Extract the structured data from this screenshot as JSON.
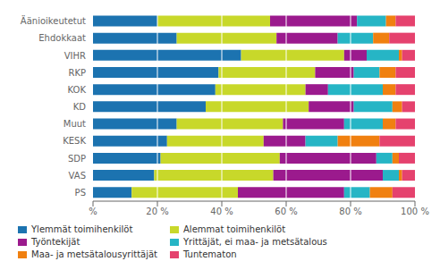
{
  "chart_data": {
    "type": "bar",
    "orientation": "horizontal",
    "stacked": true,
    "grid": true,
    "legend": "lower left",
    "categories": [
      "Äänioikeutetut",
      "Ehdokkaat",
      "VIHR",
      "RKP",
      "KOK",
      "KD",
      "Muut",
      "KESK",
      "SDP",
      "VAS",
      "PS"
    ],
    "series": [
      {
        "name": "Ylemmät toimihenkilöt",
        "color": "#1c73b0",
        "values": [
          20,
          26,
          46,
          39,
          38,
          35,
          26,
          23,
          21,
          19,
          12
        ]
      },
      {
        "name": "Alemmat toimihenkilöt",
        "color": "#c8d82a",
        "values": [
          35,
          31,
          32,
          30,
          28,
          32,
          33,
          30,
          37,
          37,
          33
        ]
      },
      {
        "name": "Työntekijät",
        "color": "#9b1a8d",
        "values": [
          27,
          19,
          7,
          12,
          7,
          14,
          19,
          13,
          30,
          34,
          33
        ]
      },
      {
        "name": "Yrittäjät, ei maa- ja metsätalous",
        "color": "#26b5c5",
        "values": [
          9,
          11,
          10,
          8,
          17,
          12,
          12,
          10,
          5,
          5,
          8
        ]
      },
      {
        "name": "Maa- ja metsätalousyrittäjät",
        "color": "#f08010",
        "values": [
          3,
          5,
          1,
          5,
          4,
          3,
          4,
          13,
          2,
          1,
          7
        ]
      },
      {
        "name": "Tuntematon",
        "color": "#e5426e",
        "values": [
          6,
          8,
          4,
          6,
          6,
          4,
          6,
          11,
          5,
          4,
          7
        ]
      }
    ],
    "xlim": [
      0,
      100
    ],
    "xticks": [
      {
        "value": 0,
        "label": "%"
      },
      {
        "value": 20,
        "label": "20 %"
      },
      {
        "value": 40,
        "label": "40 %"
      },
      {
        "value": 60,
        "label": "60 %"
      },
      {
        "value": 80,
        "label": "80 %"
      },
      {
        "value": 100,
        "label": "100 %"
      }
    ]
  }
}
